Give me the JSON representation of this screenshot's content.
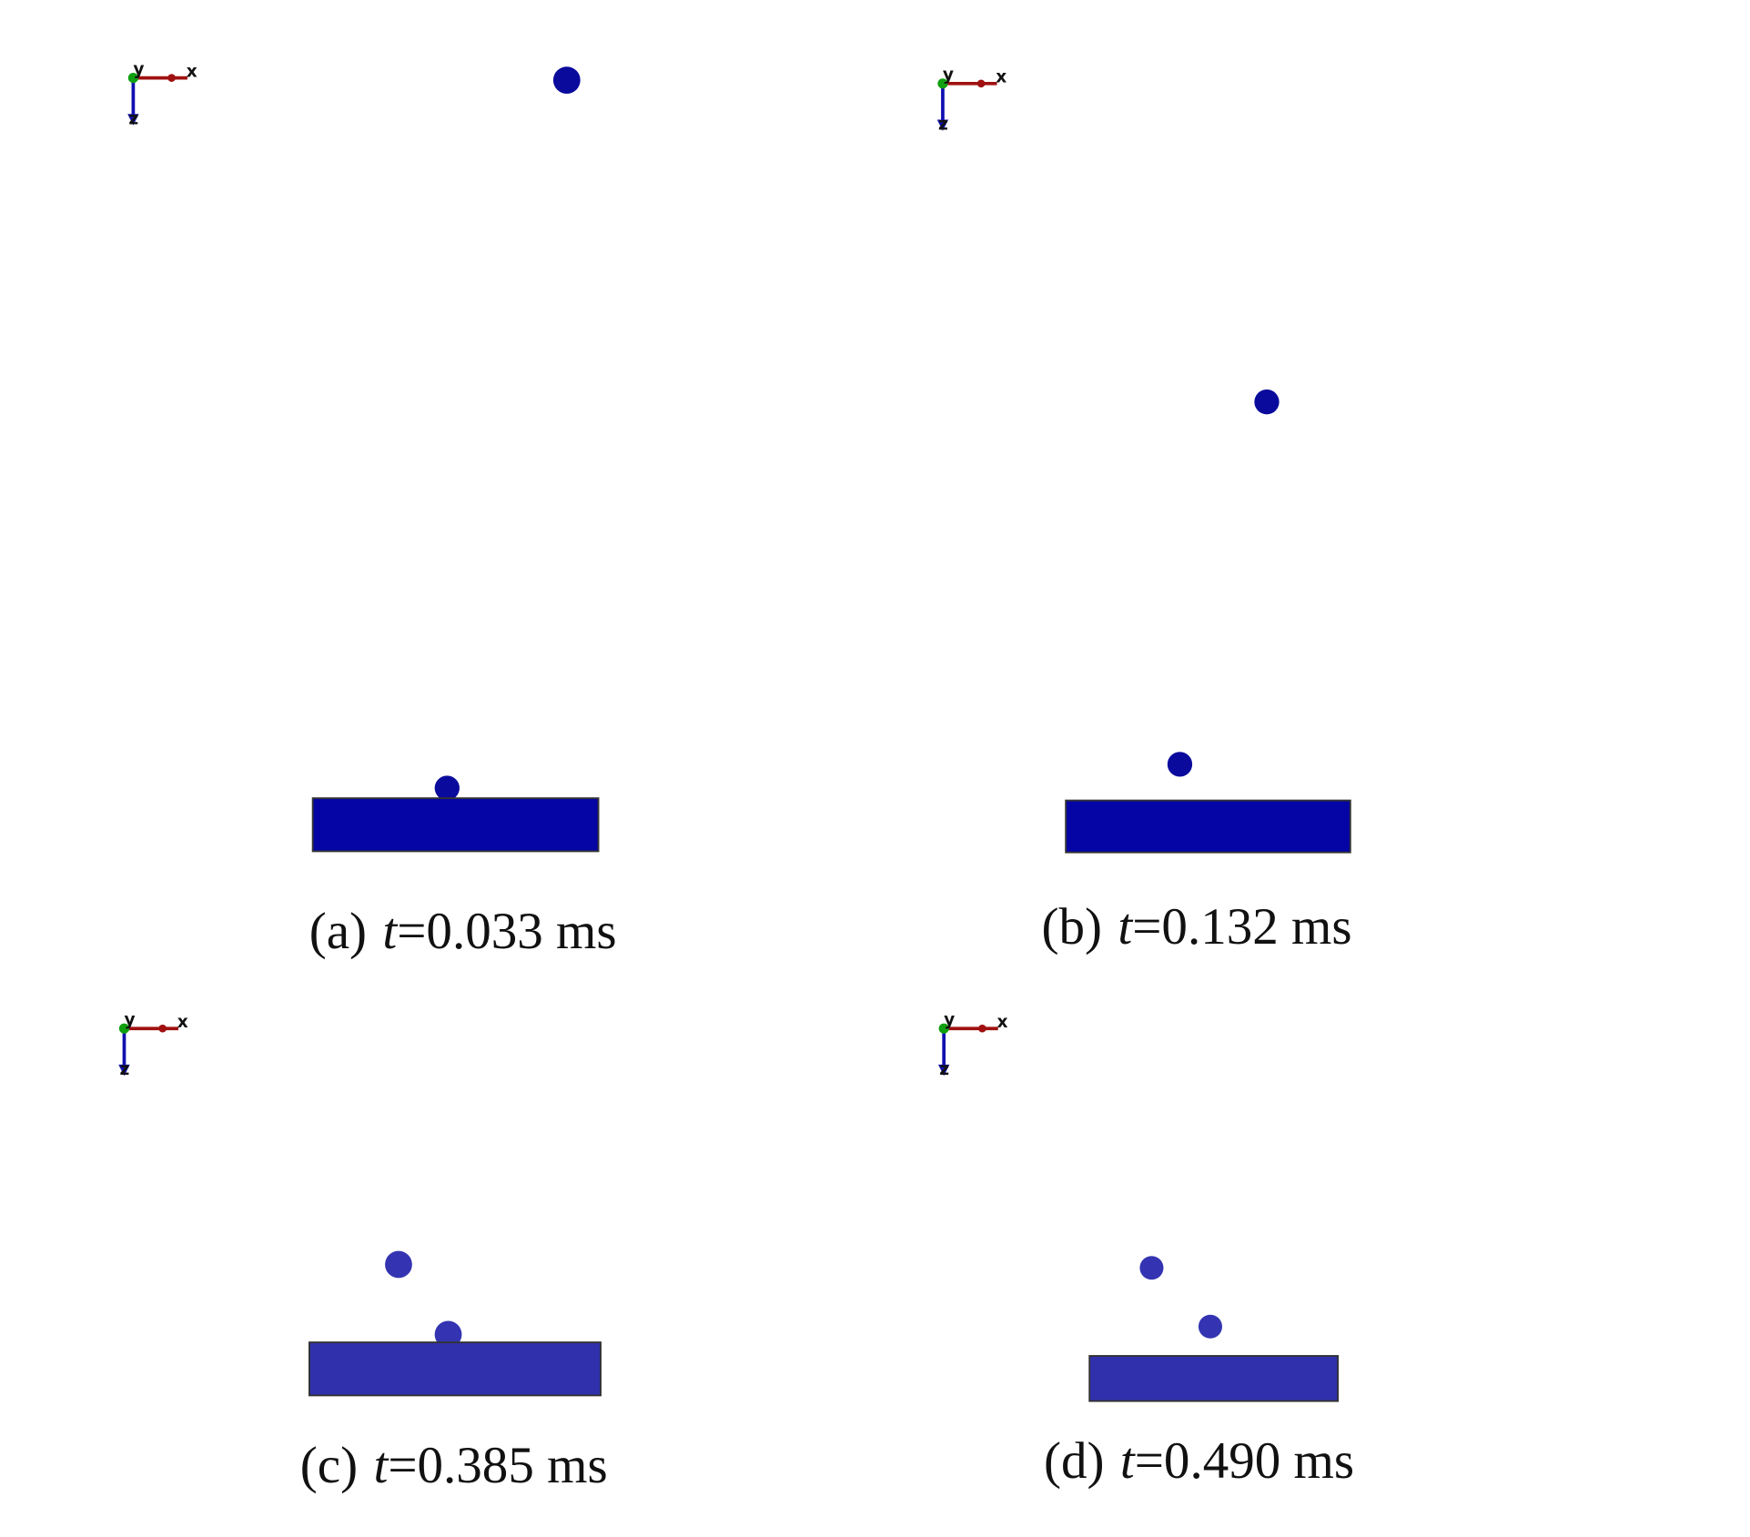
{
  "axis_labels": {
    "x": "x",
    "y": "y",
    "z": "z"
  },
  "panels": [
    {
      "label": "(a)",
      "variable": "t",
      "value": "=0.033 ms"
    },
    {
      "label": "(b)",
      "variable": "t",
      "value": "=0.132 ms"
    },
    {
      "label": "(c)",
      "variable": "t",
      "value": "=0.385 ms"
    },
    {
      "label": "(d)",
      "variable": "t",
      "value": "=0.490 ms"
    }
  ]
}
